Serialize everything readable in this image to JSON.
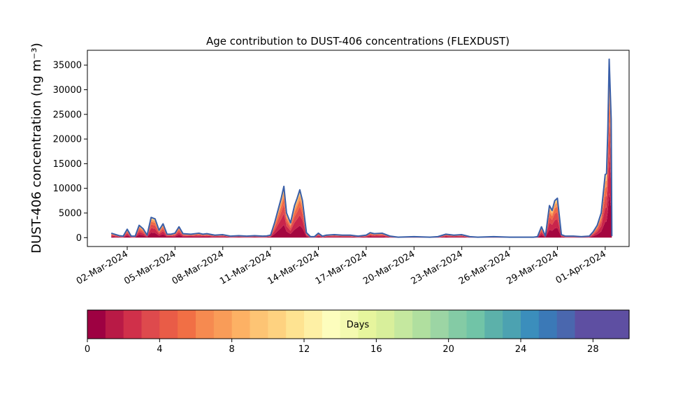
{
  "chart_data": {
    "type": "area",
    "title": "Age contribution to DUST-406 concentrations (FLEXDUST)",
    "ylabel": "DUST-406 concentration (ng m⁻³)",
    "ylim": [
      -1800,
      38000
    ],
    "yticks": [
      0,
      5000,
      10000,
      15000,
      20000,
      25000,
      30000,
      35000
    ],
    "xlim": [
      "2024-02-28T12:00",
      "2024-04-02T12:00"
    ],
    "xticks": [
      "02-Mar-2024",
      "05-Mar-2024",
      "08-Mar-2024",
      "11-Mar-2024",
      "14-Mar-2024",
      "17-Mar-2024",
      "20-Mar-2024",
      "23-Mar-2024",
      "26-Mar-2024",
      "29-Mar-2024",
      "01-Apr-2024"
    ],
    "xtick_dates": [
      "2024-03-02",
      "2024-03-05",
      "2024-03-08",
      "2024-03-11",
      "2024-03-14",
      "2024-03-17",
      "2024-03-20",
      "2024-03-23",
      "2024-03-26",
      "2024-03-29",
      "2024-04-01"
    ],
    "total_line_color": "#3a5fa8",
    "total_series": {
      "x": [
        "2024-03-01T00:00",
        "2024-03-01T12:00",
        "2024-03-01T18:00",
        "2024-03-02T00:00",
        "2024-03-02T06:00",
        "2024-03-02T12:00",
        "2024-03-02T18:00",
        "2024-03-03T00:00",
        "2024-03-03T06:00",
        "2024-03-03T12:00",
        "2024-03-03T18:00",
        "2024-03-04T00:00",
        "2024-03-04T06:00",
        "2024-03-04T12:00",
        "2024-03-04T18:00",
        "2024-03-05T00:00",
        "2024-03-05T06:00",
        "2024-03-05T12:00",
        "2024-03-06T00:00",
        "2024-03-06T12:00",
        "2024-03-06T18:00",
        "2024-03-07T00:00",
        "2024-03-07T12:00",
        "2024-03-08T00:00",
        "2024-03-08T12:00",
        "2024-03-09T00:00",
        "2024-03-09T12:00",
        "2024-03-10T00:00",
        "2024-03-10T12:00",
        "2024-03-10T18:00",
        "2024-03-11T00:00",
        "2024-03-11T06:00",
        "2024-03-11T12:00",
        "2024-03-11T16:00",
        "2024-03-11T20:00",
        "2024-03-12T00:00",
        "2024-03-12T06:00",
        "2024-03-12T12:00",
        "2024-03-12T16:00",
        "2024-03-12T20:00",
        "2024-03-13T00:00",
        "2024-03-13T06:00",
        "2024-03-13T12:00",
        "2024-03-13T18:00",
        "2024-03-14T00:00",
        "2024-03-14T06:00",
        "2024-03-14T12:00",
        "2024-03-15T00:00",
        "2024-03-15T12:00",
        "2024-03-16T00:00",
        "2024-03-16T12:00",
        "2024-03-17T00:00",
        "2024-03-17T06:00",
        "2024-03-17T12:00",
        "2024-03-18T00:00",
        "2024-03-18T12:00",
        "2024-03-19T00:00",
        "2024-03-20T00:00",
        "2024-03-21T00:00",
        "2024-03-21T12:00",
        "2024-03-22T00:00",
        "2024-03-22T12:00",
        "2024-03-23T00:00",
        "2024-03-23T12:00",
        "2024-03-24T00:00",
        "2024-03-25T00:00",
        "2024-03-26T00:00",
        "2024-03-27T00:00",
        "2024-03-27T12:00",
        "2024-03-27T18:00",
        "2024-03-28T00:00",
        "2024-03-28T06:00",
        "2024-03-28T12:00",
        "2024-03-28T16:00",
        "2024-03-28T20:00",
        "2024-03-29T00:00",
        "2024-03-29T06:00",
        "2024-03-29T12:00",
        "2024-03-30T00:00",
        "2024-03-30T12:00",
        "2024-03-31T00:00",
        "2024-03-31T06:00",
        "2024-03-31T12:00",
        "2024-03-31T18:00",
        "2024-04-01T00:00",
        "2024-04-01T02:00",
        "2024-04-01T04:00",
        "2024-04-01T06:00",
        "2024-04-01T09:00",
        "2024-04-01T10:00"
      ],
      "y": [
        900,
        400,
        300,
        1700,
        300,
        300,
        2500,
        1800,
        500,
        4100,
        3800,
        1500,
        2800,
        700,
        700,
        900,
        2200,
        800,
        700,
        900,
        700,
        800,
        500,
        600,
        300,
        400,
        300,
        400,
        300,
        350,
        500,
        3000,
        6000,
        8000,
        10400,
        5000,
        3000,
        6500,
        8000,
        9700,
        7500,
        1000,
        200,
        200,
        900,
        300,
        500,
        600,
        500,
        500,
        300,
        500,
        1000,
        800,
        900,
        300,
        100,
        200,
        100,
        200,
        700,
        500,
        600,
        200,
        100,
        200,
        100,
        100,
        100,
        200,
        2200,
        300,
        6500,
        5500,
        7500,
        8000,
        600,
        300,
        300,
        200,
        300,
        1200,
        2500,
        5000,
        12800,
        13000,
        22000,
        36200,
        24000,
        300
      ]
    },
    "colorbar": {
      "label": "Days",
      "ticks": [
        0,
        4,
        8,
        12,
        16,
        20,
        24,
        28
      ],
      "range": [
        0,
        30
      ],
      "colors": [
        "#9e0142",
        "#b91a46",
        "#d0304a",
        "#de4a4d",
        "#e95c47",
        "#f16f45",
        "#f68a50",
        "#f99c58",
        "#fdb164",
        "#fdc474",
        "#fed280",
        "#fee391",
        "#fef0a5",
        "#fdfdbd",
        "#f4fab0",
        "#e6f59d",
        "#d8ef9b",
        "#c5e89f",
        "#b0df9f",
        "#9cd5a4",
        "#84cba5",
        "#71c4a7",
        "#5cb1aa",
        "#4ca2b1",
        "#3b8ebc",
        "#3b79b7",
        "#4a67ae",
        "#5e4fa2",
        "#5e4fa2",
        "#5e4fa2"
      ]
    }
  }
}
